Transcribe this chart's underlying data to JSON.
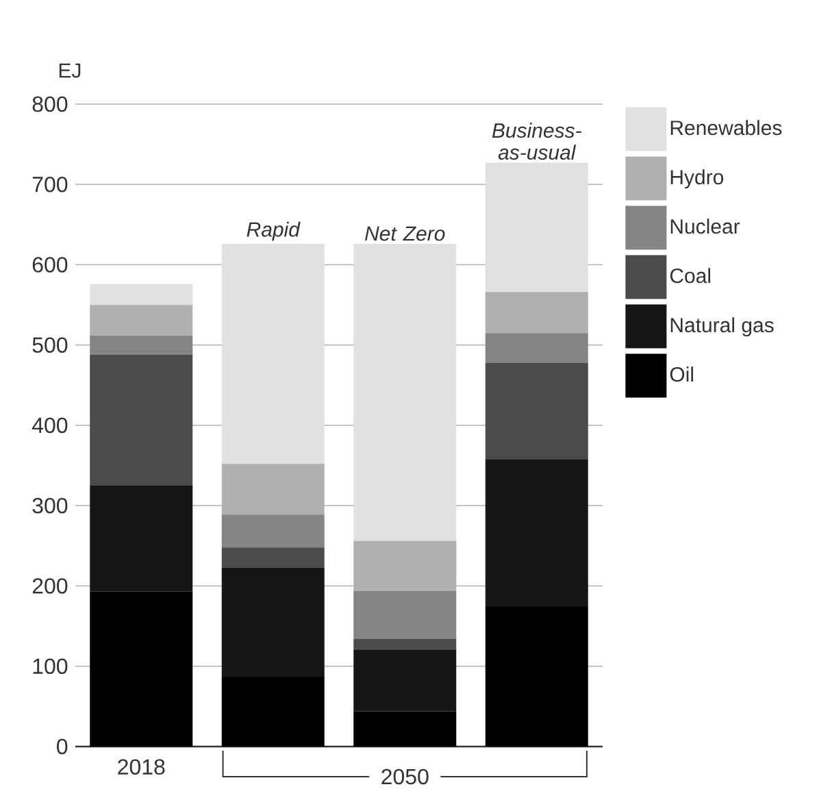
{
  "chart_data": {
    "type": "bar",
    "stacked": true,
    "ylabel": "EJ",
    "categories": [
      "2018",
      "Rapid",
      "Net Zero",
      "Business-as-usual"
    ],
    "series": [
      {
        "name": "Oil",
        "color": "#000000",
        "values": [
          193,
          87,
          44,
          174
        ]
      },
      {
        "name": "Natural gas",
        "color": "#161616",
        "values": [
          132,
          136,
          77,
          184
        ]
      },
      {
        "name": "Coal",
        "color": "#4b4b4b",
        "values": [
          163,
          25,
          13,
          120
        ]
      },
      {
        "name": "Nuclear",
        "color": "#848484",
        "values": [
          24,
          41,
          60,
          37
        ]
      },
      {
        "name": "Hydro",
        "color": "#b0b0b0",
        "values": [
          38,
          63,
          62,
          51
        ]
      },
      {
        "name": "Renewables",
        "color": "#e1e1e1",
        "values": [
          26,
          274,
          370,
          161
        ]
      }
    ],
    "ylim": [
      0,
      800
    ],
    "yticks": [
      0,
      100,
      200,
      300,
      400,
      500,
      600,
      700,
      800
    ],
    "grid": "y",
    "legend": "right",
    "annotations": [
      "2050"
    ]
  }
}
